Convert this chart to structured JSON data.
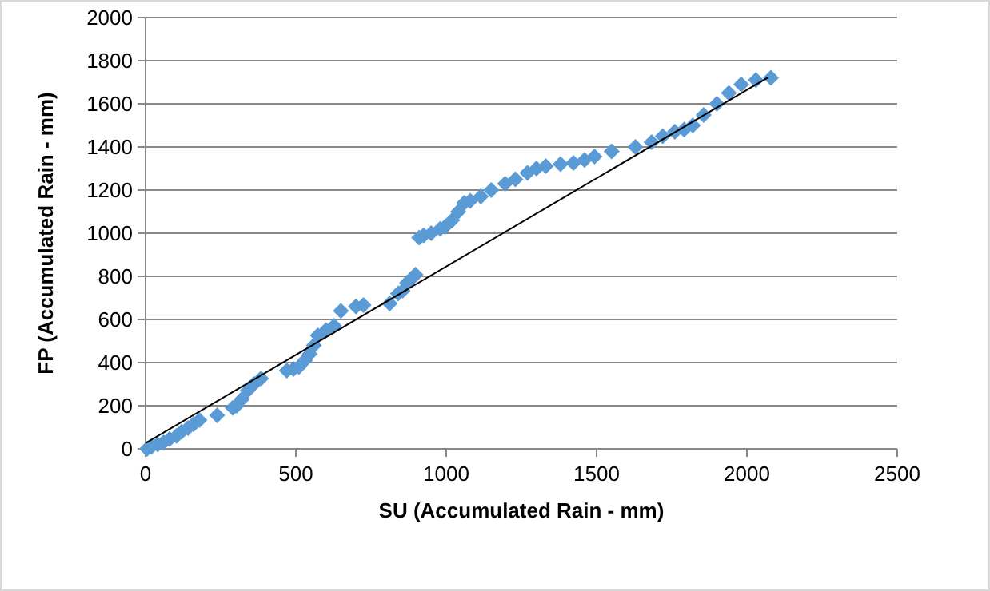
{
  "chart_data": {
    "type": "scatter",
    "xlabel": "SU  (Accumulated Rain - mm)",
    "ylabel": "FP  (Accumulated Rain - mm)",
    "xlim": [
      0,
      2500
    ],
    "ylim": [
      0,
      2000
    ],
    "xticks": [
      0,
      500,
      1000,
      1500,
      2000,
      2500
    ],
    "yticks": [
      0,
      200,
      400,
      600,
      800,
      1000,
      1200,
      1400,
      1600,
      1800,
      2000
    ],
    "grid": "y",
    "marker": "diamond",
    "series": [
      {
        "color": "#5b9bd5",
        "x": [
          5,
          20,
          40,
          60,
          80,
          103,
          120,
          141,
          160,
          179,
          238,
          290,
          303,
          320,
          340,
          360,
          384,
          470,
          492,
          510,
          530,
          546,
          560,
          573,
          600,
          627,
          650,
          700,
          725,
          812,
          840,
          855,
          870,
          885,
          898,
          910,
          925,
          950,
          980,
          996,
          1020,
          1040,
          1060,
          1080,
          1115,
          1150,
          1196,
          1230,
          1270,
          1300,
          1331,
          1380,
          1423,
          1460,
          1493,
          1550,
          1629,
          1683,
          1720,
          1760,
          1791,
          1820,
          1856,
          1900,
          1940,
          1981,
          2030,
          2080
        ],
        "values": [
          0,
          10,
          20,
          30,
          45,
          60,
          80,
          96,
          115,
          133,
          156,
          190,
          200,
          230,
          270,
          300,
          326,
          363,
          370,
          380,
          410,
          440,
          480,
          526,
          550,
          570,
          640,
          660,
          667,
          674,
          720,
          733,
          770,
          790,
          807,
          980,
          990,
          1000,
          1020,
          1030,
          1060,
          1100,
          1141,
          1150,
          1170,
          1200,
          1230,
          1250,
          1280,
          1300,
          1311,
          1320,
          1326,
          1340,
          1356,
          1380,
          1400,
          1422,
          1450,
          1470,
          1481,
          1500,
          1548,
          1600,
          1650,
          1690,
          1710,
          1720
        ]
      },
      {
        "type": "line",
        "color": "#000000",
        "marker": "none",
        "line_style": "solid",
        "x": [
          0,
          2070
        ],
        "values": [
          26,
          1722
        ]
      }
    ]
  }
}
